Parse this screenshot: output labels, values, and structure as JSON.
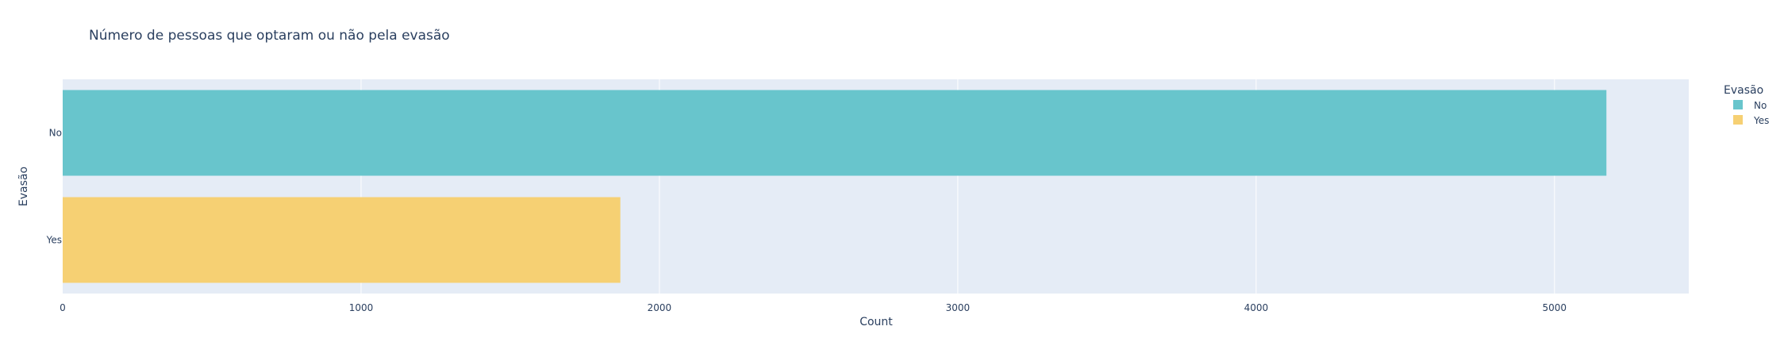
{
  "chart_data": {
    "type": "bar",
    "orientation": "horizontal",
    "title": "Número de pessoas que optaram ou não pela evasão",
    "xlabel": "Count",
    "ylabel": "Evasão",
    "categories": [
      "No",
      "Yes"
    ],
    "values": [
      5174,
      1869
    ],
    "colors": [
      "#68c5cc",
      "#f6d073"
    ],
    "xlim": [
      0,
      5450
    ],
    "xticks": [
      0,
      1000,
      2000,
      3000,
      4000,
      5000
    ],
    "grid": true,
    "plot_background": "#e5ecf6",
    "legend": {
      "title": "Evasão",
      "placement": "top-right",
      "items": [
        "No",
        "Yes"
      ]
    }
  }
}
